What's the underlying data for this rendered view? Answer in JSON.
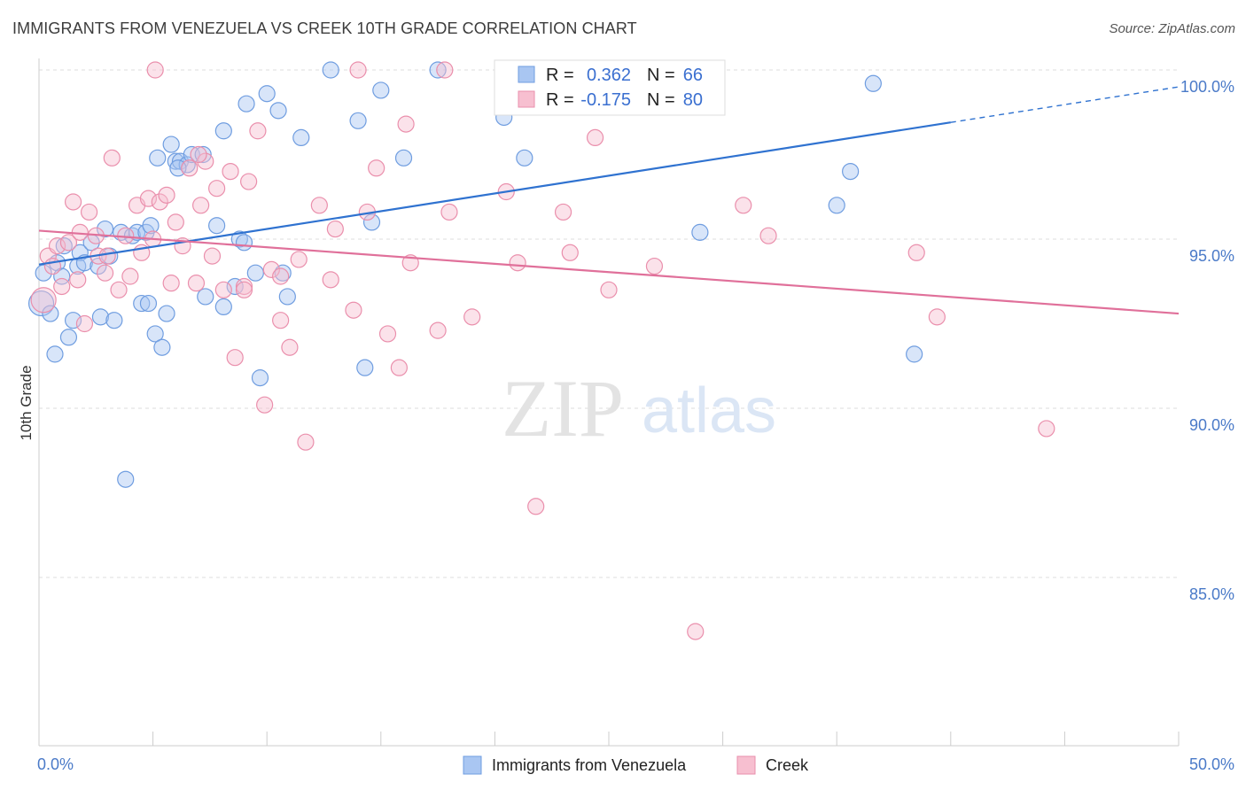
{
  "title": "IMMIGRANTS FROM VENEZUELA VS CREEK 10TH GRADE CORRELATION CHART",
  "source": "Source: ZipAtlas.com",
  "colors": {
    "blue_fill": "#a9c6f2",
    "blue_stroke": "#6f9de0",
    "blue_line": "#2f72d0",
    "pink_fill": "#f7bfd0",
    "pink_stroke": "#ea8fac",
    "pink_line": "#e0709a",
    "tick_text": "#4a7ac8",
    "grid": "#dddddd"
  },
  "watermark": {
    "zip": "ZIP",
    "atlas": "atlas"
  },
  "chart_data": {
    "type": "scatter",
    "ylabel": "10th Grade",
    "xlim": [
      0,
      50
    ],
    "ylim": [
      80.5,
      101.0
    ],
    "x_tick_labels": [
      {
        "value": 0,
        "label": "0.0%"
      },
      {
        "value": 50,
        "label": "50.0%"
      }
    ],
    "y_ticks": [
      {
        "value": 100,
        "label": "100.0%"
      },
      {
        "value": 95,
        "label": "95.0%"
      },
      {
        "value": 90,
        "label": "90.0%"
      },
      {
        "value": 85,
        "label": "85.0%"
      }
    ],
    "x_minor_ticks": [
      0,
      5,
      10,
      15,
      20,
      25,
      30,
      35,
      40,
      45,
      50
    ],
    "legend": {
      "rows": [
        {
          "r_label": "R =",
          "r_value": "0.362",
          "n_label": "N =",
          "n_value": "66",
          "series": "blue"
        },
        {
          "r_label": "R =",
          "r_value": "-0.175",
          "n_label": "N =",
          "n_value": "80",
          "series": "pink"
        }
      ]
    },
    "series": [
      {
        "name": "Immigrants from Venezuela",
        "color": "blue",
        "trend": {
          "x0": 0,
          "y0": 94.25,
          "x1": 40,
          "y1": 98.45,
          "dash_to_x": 50,
          "dash_to_y": 99.5
        },
        "points": [
          [
            0.1,
            93.1
          ],
          [
            0.2,
            94.0
          ],
          [
            0.5,
            92.8
          ],
          [
            0.7,
            91.6
          ],
          [
            0.8,
            94.3
          ],
          [
            1.0,
            93.9
          ],
          [
            1.3,
            92.1
          ],
          [
            1.5,
            92.6
          ],
          [
            1.7,
            94.2
          ],
          [
            1.8,
            94.6
          ],
          [
            2.0,
            94.3
          ],
          [
            2.3,
            94.9
          ],
          [
            2.6,
            94.2
          ],
          [
            2.7,
            92.7
          ],
          [
            2.9,
            95.3
          ],
          [
            3.1,
            94.5
          ],
          [
            3.3,
            92.6
          ],
          [
            3.6,
            95.2
          ],
          [
            3.8,
            87.9
          ],
          [
            4.1,
            95.1
          ],
          [
            4.3,
            95.2
          ],
          [
            4.5,
            93.1
          ],
          [
            4.7,
            95.2
          ],
          [
            4.8,
            93.1
          ],
          [
            4.9,
            95.4
          ],
          [
            5.1,
            92.2
          ],
          [
            5.2,
            97.4
          ],
          [
            5.4,
            91.8
          ],
          [
            5.6,
            92.8
          ],
          [
            5.8,
            97.8
          ],
          [
            6.0,
            97.3
          ],
          [
            6.2,
            97.3
          ],
          [
            6.5,
            97.2
          ],
          [
            6.7,
            97.5
          ],
          [
            7.2,
            97.5
          ],
          [
            7.3,
            93.3
          ],
          [
            7.8,
            95.4
          ],
          [
            8.1,
            98.2
          ],
          [
            8.1,
            93.0
          ],
          [
            8.6,
            93.6
          ],
          [
            8.8,
            95.0
          ],
          [
            9.0,
            94.9
          ],
          [
            9.1,
            99.0
          ],
          [
            9.5,
            94.0
          ],
          [
            9.7,
            90.9
          ],
          [
            10.0,
            99.3
          ],
          [
            10.5,
            98.8
          ],
          [
            10.7,
            94.0
          ],
          [
            10.9,
            93.3
          ],
          [
            11.5,
            98.0
          ],
          [
            12.8,
            100.0
          ],
          [
            14.0,
            98.5
          ],
          [
            14.3,
            91.2
          ],
          [
            14.6,
            95.5
          ],
          [
            15.0,
            99.4
          ],
          [
            16.0,
            97.4
          ],
          [
            17.5,
            100.0
          ],
          [
            20.4,
            98.6
          ],
          [
            21.3,
            97.4
          ],
          [
            29.0,
            95.2
          ],
          [
            35.0,
            96.0
          ],
          [
            35.6,
            97.0
          ],
          [
            38.4,
            91.6
          ],
          [
            36.6,
            99.6
          ],
          [
            1.1,
            94.8
          ],
          [
            6.1,
            97.1
          ]
        ]
      },
      {
        "name": "Creek",
        "color": "pink",
        "trend": {
          "x0": 0,
          "y0": 95.25,
          "x1": 50,
          "y1": 92.8
        },
        "points": [
          [
            0.2,
            93.2
          ],
          [
            0.4,
            94.5
          ],
          [
            0.6,
            94.2
          ],
          [
            0.8,
            94.8
          ],
          [
            1.0,
            93.6
          ],
          [
            1.3,
            94.9
          ],
          [
            1.5,
            96.1
          ],
          [
            1.7,
            93.8
          ],
          [
            2.0,
            92.5
          ],
          [
            2.2,
            95.8
          ],
          [
            2.5,
            95.1
          ],
          [
            2.6,
            94.5
          ],
          [
            2.9,
            94.0
          ],
          [
            3.2,
            97.4
          ],
          [
            3.5,
            93.5
          ],
          [
            3.8,
            95.1
          ],
          [
            4.0,
            93.9
          ],
          [
            4.3,
            96.0
          ],
          [
            4.5,
            94.6
          ],
          [
            4.8,
            96.2
          ],
          [
            5.0,
            95.0
          ],
          [
            5.3,
            96.1
          ],
          [
            5.6,
            96.3
          ],
          [
            5.8,
            93.7
          ],
          [
            6.0,
            95.5
          ],
          [
            6.3,
            94.8
          ],
          [
            6.6,
            97.1
          ],
          [
            6.9,
            93.7
          ],
          [
            7.1,
            96.0
          ],
          [
            7.3,
            97.3
          ],
          [
            7.6,
            94.5
          ],
          [
            7.8,
            96.5
          ],
          [
            8.1,
            93.5
          ],
          [
            8.4,
            97.0
          ],
          [
            8.6,
            91.5
          ],
          [
            9.0,
            93.6
          ],
          [
            9.2,
            96.7
          ],
          [
            9.6,
            98.2
          ],
          [
            9.9,
            90.1
          ],
          [
            10.2,
            94.1
          ],
          [
            10.6,
            92.6
          ],
          [
            11.0,
            91.8
          ],
          [
            11.4,
            94.4
          ],
          [
            11.7,
            89.0
          ],
          [
            12.3,
            96.0
          ],
          [
            12.8,
            93.8
          ],
          [
            13.0,
            95.3
          ],
          [
            13.8,
            92.9
          ],
          [
            14.4,
            95.8
          ],
          [
            14.8,
            97.1
          ],
          [
            15.3,
            92.2
          ],
          [
            15.8,
            91.2
          ],
          [
            16.1,
            98.4
          ],
          [
            16.3,
            94.3
          ],
          [
            17.5,
            92.3
          ],
          [
            18.0,
            95.8
          ],
          [
            19.0,
            92.7
          ],
          [
            20.5,
            96.4
          ],
          [
            21.0,
            94.3
          ],
          [
            21.8,
            87.1
          ],
          [
            23.0,
            95.8
          ],
          [
            23.3,
            94.6
          ],
          [
            24.4,
            98.0
          ],
          [
            25.0,
            93.5
          ],
          [
            27.0,
            94.2
          ],
          [
            28.8,
            83.4
          ],
          [
            30.9,
            96.0
          ],
          [
            32.0,
            95.1
          ],
          [
            38.5,
            94.6
          ],
          [
            39.4,
            92.7
          ],
          [
            44.2,
            89.4
          ],
          [
            9.0,
            93.5
          ],
          [
            3.0,
            94.5
          ],
          [
            1.8,
            95.2
          ],
          [
            7.0,
            97.5
          ],
          [
            24.0,
            100.0
          ],
          [
            14.0,
            100.0
          ],
          [
            5.1,
            100.0
          ],
          [
            17.8,
            100.0
          ],
          [
            10.6,
            93.9
          ]
        ]
      }
    ],
    "bottom_legend": [
      {
        "label": "Immigrants from Venezuela",
        "color": "blue"
      },
      {
        "label": "Creek",
        "color": "pink"
      }
    ]
  }
}
